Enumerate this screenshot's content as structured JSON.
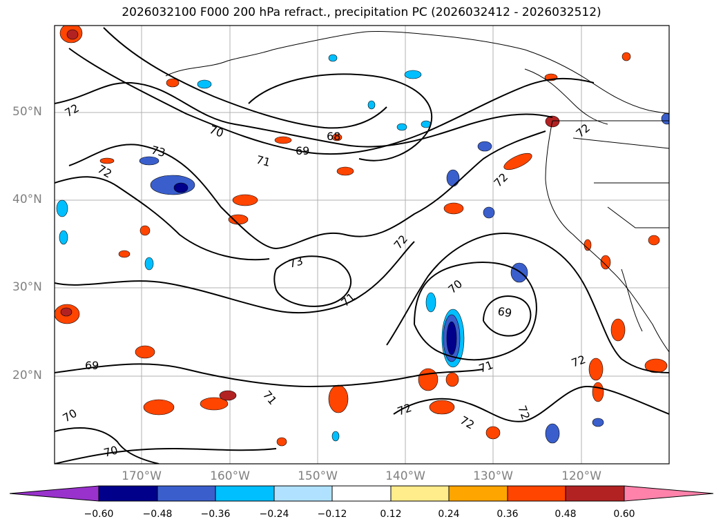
{
  "title": "2026032100 F000 200 hPa refract., precipitation PC (2026032412 - 2026032512)",
  "lat_labels": [
    "50°N",
    "40°N",
    "30°N",
    "20°N"
  ],
  "lon_labels": [
    "170°W",
    "160°W",
    "150°W",
    "140°W",
    "130°W",
    "120°W"
  ],
  "contour_labels": [
    "72",
    "70",
    "68",
    "73",
    "69",
    "71",
    "72",
    "72",
    "72",
    "73",
    "71",
    "70",
    "69",
    "71",
    "72",
    "69",
    "71",
    "72",
    "72",
    "72",
    "70",
    "70",
    "72"
  ],
  "colorbar": {
    "ticks": [
      "−0.60",
      "−0.48",
      "−0.36",
      "−0.24",
      "−0.12",
      "0.12",
      "0.24",
      "0.36",
      "0.48",
      "0.60"
    ],
    "colors": [
      "#9932cc",
      "#00008b",
      "#3a5fcd",
      "#00bfff",
      "#b0e2ff",
      "#ffffff",
      "#ffec8b",
      "#ffa500",
      "#ff4500",
      "#b22222",
      "#ff82ab"
    ]
  },
  "chart_data": {
    "type": "heatmap",
    "title": "2026032100 F000 200 hPa refract., precipitation PC (2026032412 - 2026032512)",
    "x_ticks": [
      "170°W",
      "160°W",
      "150°W",
      "140°W",
      "130°W",
      "120°W"
    ],
    "y_ticks": [
      "50°N",
      "40°N",
      "30°N",
      "20°N"
    ],
    "contour_levels": [
      68,
      69,
      70,
      71,
      72,
      73
    ],
    "colorbar_levels": [
      -0.6,
      -0.48,
      -0.36,
      -0.24,
      -0.12,
      0.12,
      0.24,
      0.36,
      0.48,
      0.6
    ]
  }
}
